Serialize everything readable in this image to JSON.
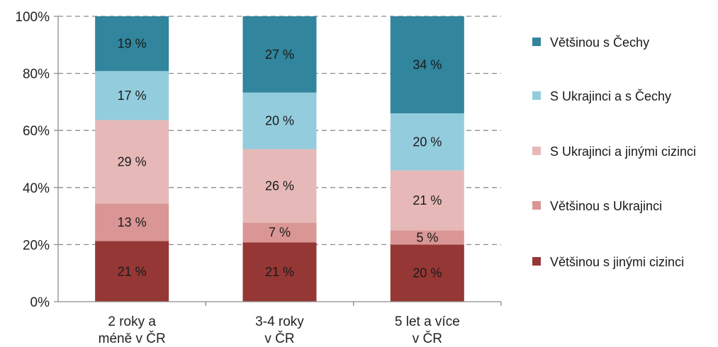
{
  "chart_data": {
    "type": "bar",
    "stacked": true,
    "percent_stacked": true,
    "categories": [
      [
        "2 roky a",
        "méně v ČR"
      ],
      [
        "3-4 roky",
        "v ČR"
      ],
      [
        "5 let a více",
        "v ČR"
      ]
    ],
    "series": [
      {
        "name": "Většinou s jinými cizinci",
        "color": "#953735",
        "values": [
          21,
          21,
          20
        ]
      },
      {
        "name": "Většinou s Ukrajinci",
        "color": "#d99694",
        "values": [
          13,
          7,
          5
        ]
      },
      {
        "name": "S Ukrajinci a jinými cizinci",
        "color": "#e6b9b8",
        "values": [
          29,
          26,
          21
        ]
      },
      {
        "name": "S Ukrajinci a s Čechy",
        "color": "#93cddd",
        "values": [
          17,
          20,
          20
        ]
      },
      {
        "name": "Většinou s Čechy",
        "color": "#31859c",
        "values": [
          19,
          27,
          34
        ]
      }
    ],
    "data_label_suffix": " %",
    "ylim": [
      0,
      100
    ],
    "yticks": [
      0,
      20,
      40,
      60,
      80,
      100
    ],
    "ytick_labels": [
      "0%",
      "20%",
      "40%",
      "60%",
      "80%",
      "100%"
    ],
    "grid": true,
    "legend_position": "right",
    "legend_order": [
      4,
      3,
      2,
      1,
      0
    ]
  }
}
